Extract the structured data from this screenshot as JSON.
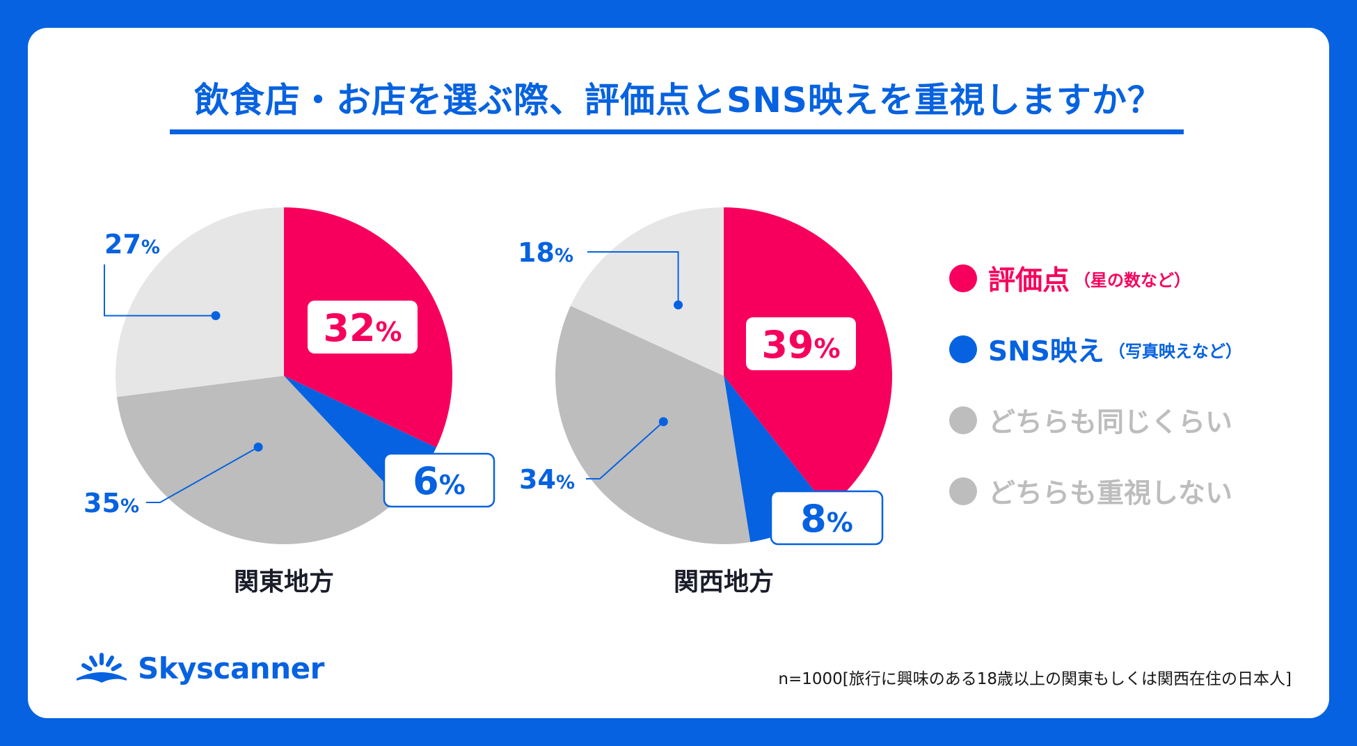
{
  "title": "飲食店・お店を選ぶ際、評価点とSNS映えを重視しますか？",
  "colors": {
    "background": "#0662e0",
    "card": "#ffffff",
    "rating": "#f7005d",
    "sns": "#0662e0",
    "same": "#bdbdbd",
    "neither": "#e6e6e6",
    "label": "#0662e0",
    "dark": "#1a1d29"
  },
  "legend": [
    {
      "label": "評価点",
      "sub": "（星の数など）",
      "color": "#f7005d"
    },
    {
      "label": "SNS映え",
      "sub": "（写真映えなど）",
      "color": "#0662e0"
    },
    {
      "label": "どちらも同じくらい",
      "sub": "",
      "color": "#bdbdbd"
    },
    {
      "label": "どちらも重視しない",
      "sub": "",
      "color": "#bdbdbd"
    }
  ],
  "chart_data": [
    {
      "type": "pie",
      "title": "関東地方",
      "unit": "%",
      "slices": [
        {
          "name": "評価点",
          "value": 32
        },
        {
          "name": "SNS映え",
          "value": 6
        },
        {
          "name": "どちらも同じくらい",
          "value": 35
        },
        {
          "name": "どちらも重視しない",
          "value": 27
        }
      ]
    },
    {
      "type": "pie",
      "title": "関西地方",
      "unit": "%",
      "slices": [
        {
          "name": "評価点",
          "value": 39
        },
        {
          "name": "SNS映え",
          "value": 8
        },
        {
          "name": "どちらも同じくらい",
          "value": 34
        },
        {
          "name": "どちらも重視しない",
          "value": 18
        }
      ]
    }
  ],
  "brand": {
    "name": "Skyscanner",
    "icon": "sunrise-logo-icon"
  },
  "footnote": "n=1000[旅行に興味のある18歳以上の関東もしくは関西在住の日本人]"
}
